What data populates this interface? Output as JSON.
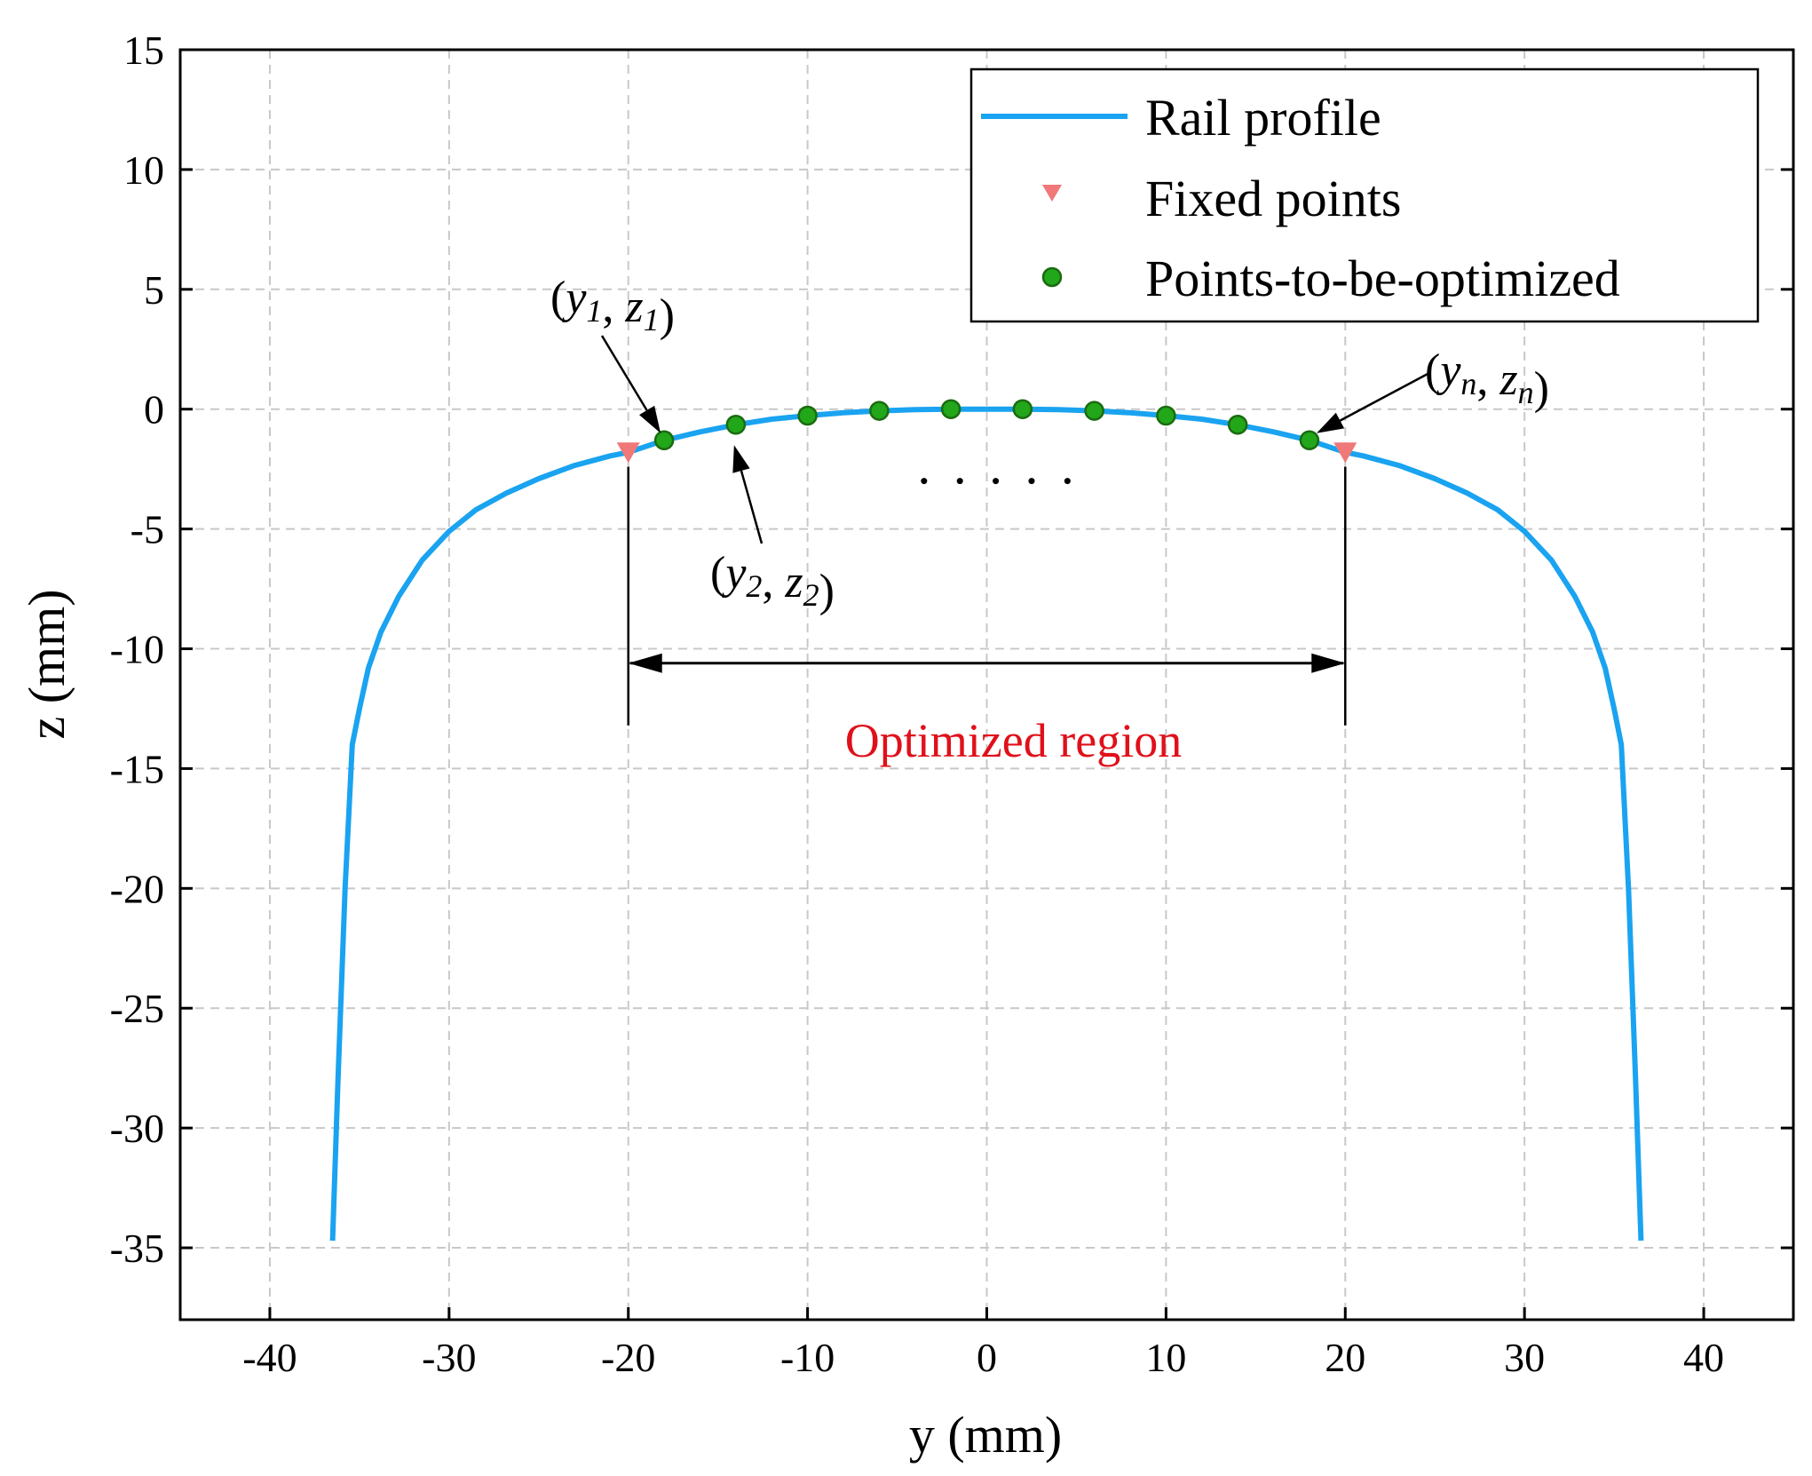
{
  "chart_data": {
    "type": "line",
    "xlabel": "y (mm)",
    "ylabel": "z (mm)",
    "xlim": [
      -45,
      45
    ],
    "ylim": [
      -38,
      15
    ],
    "xticks": [
      -40,
      -30,
      -20,
      -10,
      0,
      10,
      20,
      30,
      40
    ],
    "xtick_labels": [
      "-40",
      "-30",
      "-20",
      "-10",
      "0",
      "10",
      "20",
      "30",
      "40"
    ],
    "yticks": [
      15,
      10,
      5,
      0,
      -5,
      -10,
      -15,
      -20,
      -25,
      -30,
      -35
    ],
    "ytick_labels": [
      "15",
      "10",
      "5",
      "0",
      "-5",
      "-10",
      "-15",
      "-20",
      "-25",
      "-30",
      "-35"
    ],
    "grid": true,
    "legend_position": "top-right",
    "colors": {
      "profile": "#1aa3f0",
      "fixed": "#f07878",
      "optimized": "#22a61a",
      "optimized_edge": "#1a6b10",
      "region_text": "#e0101a"
    },
    "series": [
      {
        "name": "Rail profile",
        "kind": "line",
        "x": [
          -36.5,
          -36.2,
          -35.8,
          -35.4,
          -35.0,
          -34.5,
          -33.8,
          -32.8,
          -31.5,
          -30.0,
          -28.5,
          -26.8,
          -25.0,
          -23.0,
          -21.0,
          -20.0,
          -18.0,
          -16.0,
          -14.0,
          -12.0,
          -10.0,
          -8.0,
          -6.0,
          -4.0,
          -2.0,
          0.0,
          2.0,
          4.0,
          6.0,
          8.0,
          10.0,
          12.0,
          14.0,
          16.0,
          18.0,
          20.0,
          21.0,
          23.0,
          25.0,
          26.8,
          28.5,
          30.0,
          31.5,
          32.8,
          33.8,
          34.5,
          35.0,
          35.4,
          35.8,
          36.2,
          36.5
        ],
        "y": [
          -34.7,
          -28.0,
          -20.0,
          -14.0,
          -12.5,
          -10.8,
          -9.3,
          -7.8,
          -6.3,
          -5.1,
          -4.2,
          -3.5,
          -2.9,
          -2.35,
          -1.95,
          -1.8,
          -1.3,
          -0.95,
          -0.65,
          -0.42,
          -0.27,
          -0.15,
          -0.07,
          -0.02,
          0.0,
          0.0,
          0.0,
          -0.02,
          -0.07,
          -0.15,
          -0.27,
          -0.42,
          -0.65,
          -0.95,
          -1.3,
          -1.8,
          -1.95,
          -2.35,
          -2.9,
          -3.5,
          -4.2,
          -5.1,
          -6.3,
          -7.8,
          -9.3,
          -10.8,
          -12.5,
          -14.0,
          -20.0,
          -28.0,
          -34.7
        ]
      },
      {
        "name": "Fixed points",
        "kind": "marker-triangle-down",
        "x": [
          -20,
          20
        ],
        "y": [
          -1.8,
          -1.8
        ]
      },
      {
        "name": "Points-to-be-optimized",
        "kind": "marker-circle",
        "x": [
          -18,
          -14,
          -10,
          -6,
          -2,
          2,
          6,
          10,
          14,
          18
        ],
        "y": [
          -1.3,
          -0.65,
          -0.27,
          -0.07,
          0.0,
          0.0,
          -0.07,
          -0.27,
          -0.65,
          -1.3
        ]
      }
    ],
    "annotations": {
      "p1": {
        "open": "(",
        "v1": "y",
        "s1": "1",
        "sep": ", ",
        "v2": "z",
        "s2": "1",
        "close": ")"
      },
      "p2": {
        "open": "(",
        "v1": "y",
        "s1": "2",
        "sep": ", ",
        "v2": "z",
        "s2": "2",
        "close": ")"
      },
      "pn": {
        "open": "(",
        "v1": "y",
        "s1": "n",
        "sep": ", ",
        "v2": "z",
        "s2": "n",
        "close": ")"
      },
      "ellipsis": "......",
      "region_label": "Optimized region",
      "region_from": -20,
      "region_to": 20,
      "ellipsis_x": [
        -3.5,
        -1.5,
        0.5,
        2.5,
        4.5
      ],
      "ellipsis_y": -3.0
    }
  }
}
